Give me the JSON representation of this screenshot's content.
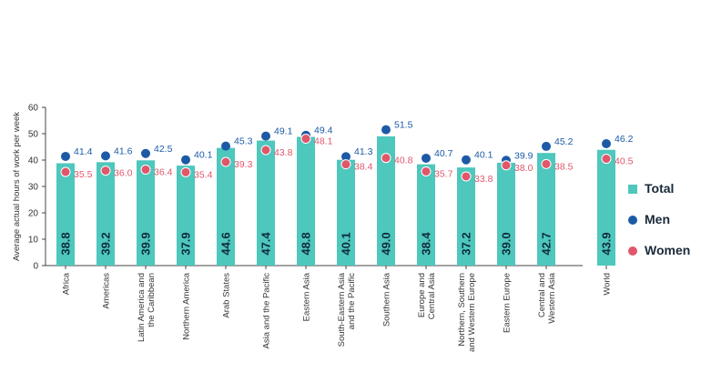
{
  "chart_data": {
    "type": "bar",
    "ylabel": "Average actual hours of work per week",
    "ylim": [
      0,
      60
    ],
    "yticks": [
      0,
      10,
      20,
      30,
      40,
      50,
      60
    ],
    "categories": [
      [
        "Africa"
      ],
      [
        "Americas"
      ],
      [
        "Latin America and",
        "the Caribbean"
      ],
      [
        "Northern America"
      ],
      [
        "Arab States"
      ],
      [
        "Asia and the Pacific"
      ],
      [
        "Eastern Asia"
      ],
      [
        "South-Eastern Asia",
        "and the Pacific"
      ],
      [
        "Southern Asia"
      ],
      [
        "Europe and",
        "Central Asia"
      ],
      [
        "Northern, Southern",
        "and Western Europe"
      ],
      [
        "Eastern Europe"
      ],
      [
        "Central and",
        "Western Asia"
      ],
      [
        "World"
      ]
    ],
    "series": [
      {
        "name": "Total",
        "kind": "bar",
        "color": "#4ec7bd",
        "values": [
          38.8,
          39.2,
          39.9,
          37.9,
          44.6,
          47.4,
          48.8,
          40.1,
          49.0,
          38.4,
          37.2,
          39.0,
          42.7,
          43.9
        ]
      },
      {
        "name": "Men",
        "kind": "dot",
        "color": "#1c5aa6",
        "values": [
          41.4,
          41.6,
          42.5,
          40.1,
          45.3,
          49.1,
          49.4,
          41.3,
          51.5,
          40.7,
          40.1,
          39.9,
          45.2,
          46.2
        ]
      },
      {
        "name": "Women",
        "kind": "dot",
        "color": "#e0566a",
        "values": [
          35.5,
          36.0,
          36.4,
          35.4,
          39.3,
          43.8,
          48.1,
          38.4,
          40.8,
          35.7,
          33.8,
          38.0,
          38.5,
          40.5
        ]
      }
    ],
    "value_labels": {
      "total": [
        "38.8",
        "39.2",
        "39.9",
        "37.9",
        "44.6",
        "47.4",
        "48.8",
        "40.1",
        "49.0",
        "38.4",
        "37.2",
        "39.0",
        "42.7",
        "43.9"
      ],
      "men": [
        "41.4",
        "41.6",
        "42.5",
        "40.1",
        "45.3",
        "49.1",
        "49.4",
        "41.3",
        "51.5",
        "40.7",
        "40.1",
        "39.9",
        "45.2",
        "46.2"
      ],
      "women": [
        "35.5",
        "36.0",
        "36.4",
        "35.4",
        "39.3",
        "43.8",
        "48.1",
        "38.4",
        "40.8",
        "35.7",
        "33.8",
        "38.0",
        "38.5",
        "40.5"
      ]
    },
    "grid": false,
    "legend": "right"
  },
  "legend": {
    "total": "Total",
    "men": "Men",
    "women": "Women"
  },
  "colors": {
    "total": "#4ec7bd",
    "men": "#1c5aa6",
    "women": "#e0566a",
    "bar_label": "#0f2b3c",
    "axis": "#444444"
  }
}
